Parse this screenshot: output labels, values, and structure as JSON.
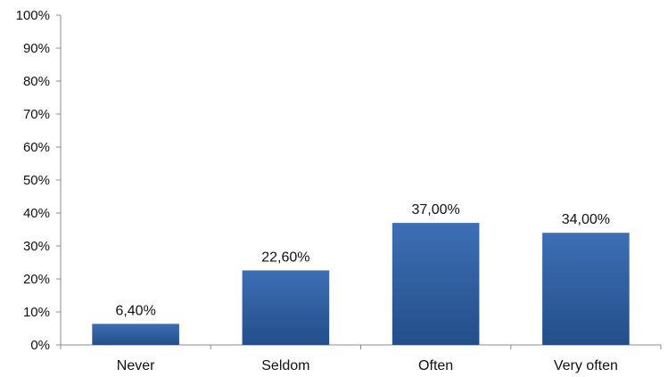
{
  "chart_data": {
    "type": "bar",
    "title": "",
    "xlabel": "",
    "ylabel": "",
    "categories": [
      "Never",
      "Seldom",
      "Often",
      "Very often"
    ],
    "values": [
      6.4,
      22.6,
      37.0,
      34.0
    ],
    "data_labels": [
      "6,40%",
      "22,60%",
      "37,00%",
      "34,00%"
    ],
    "ylim": [
      0,
      100
    ],
    "yticks": [
      0,
      10,
      20,
      30,
      40,
      50,
      60,
      70,
      80,
      90,
      100
    ],
    "ytick_labels": [
      "0%",
      "10%",
      "20%",
      "30%",
      "40%",
      "50%",
      "60%",
      "70%",
      "80%",
      "90%",
      "100%"
    ],
    "grid": false,
    "legend": "none",
    "colors": {
      "bar_top": "#3E6FB5",
      "bar_bottom": "#234E89",
      "axis": "#8C8C8C"
    }
  }
}
